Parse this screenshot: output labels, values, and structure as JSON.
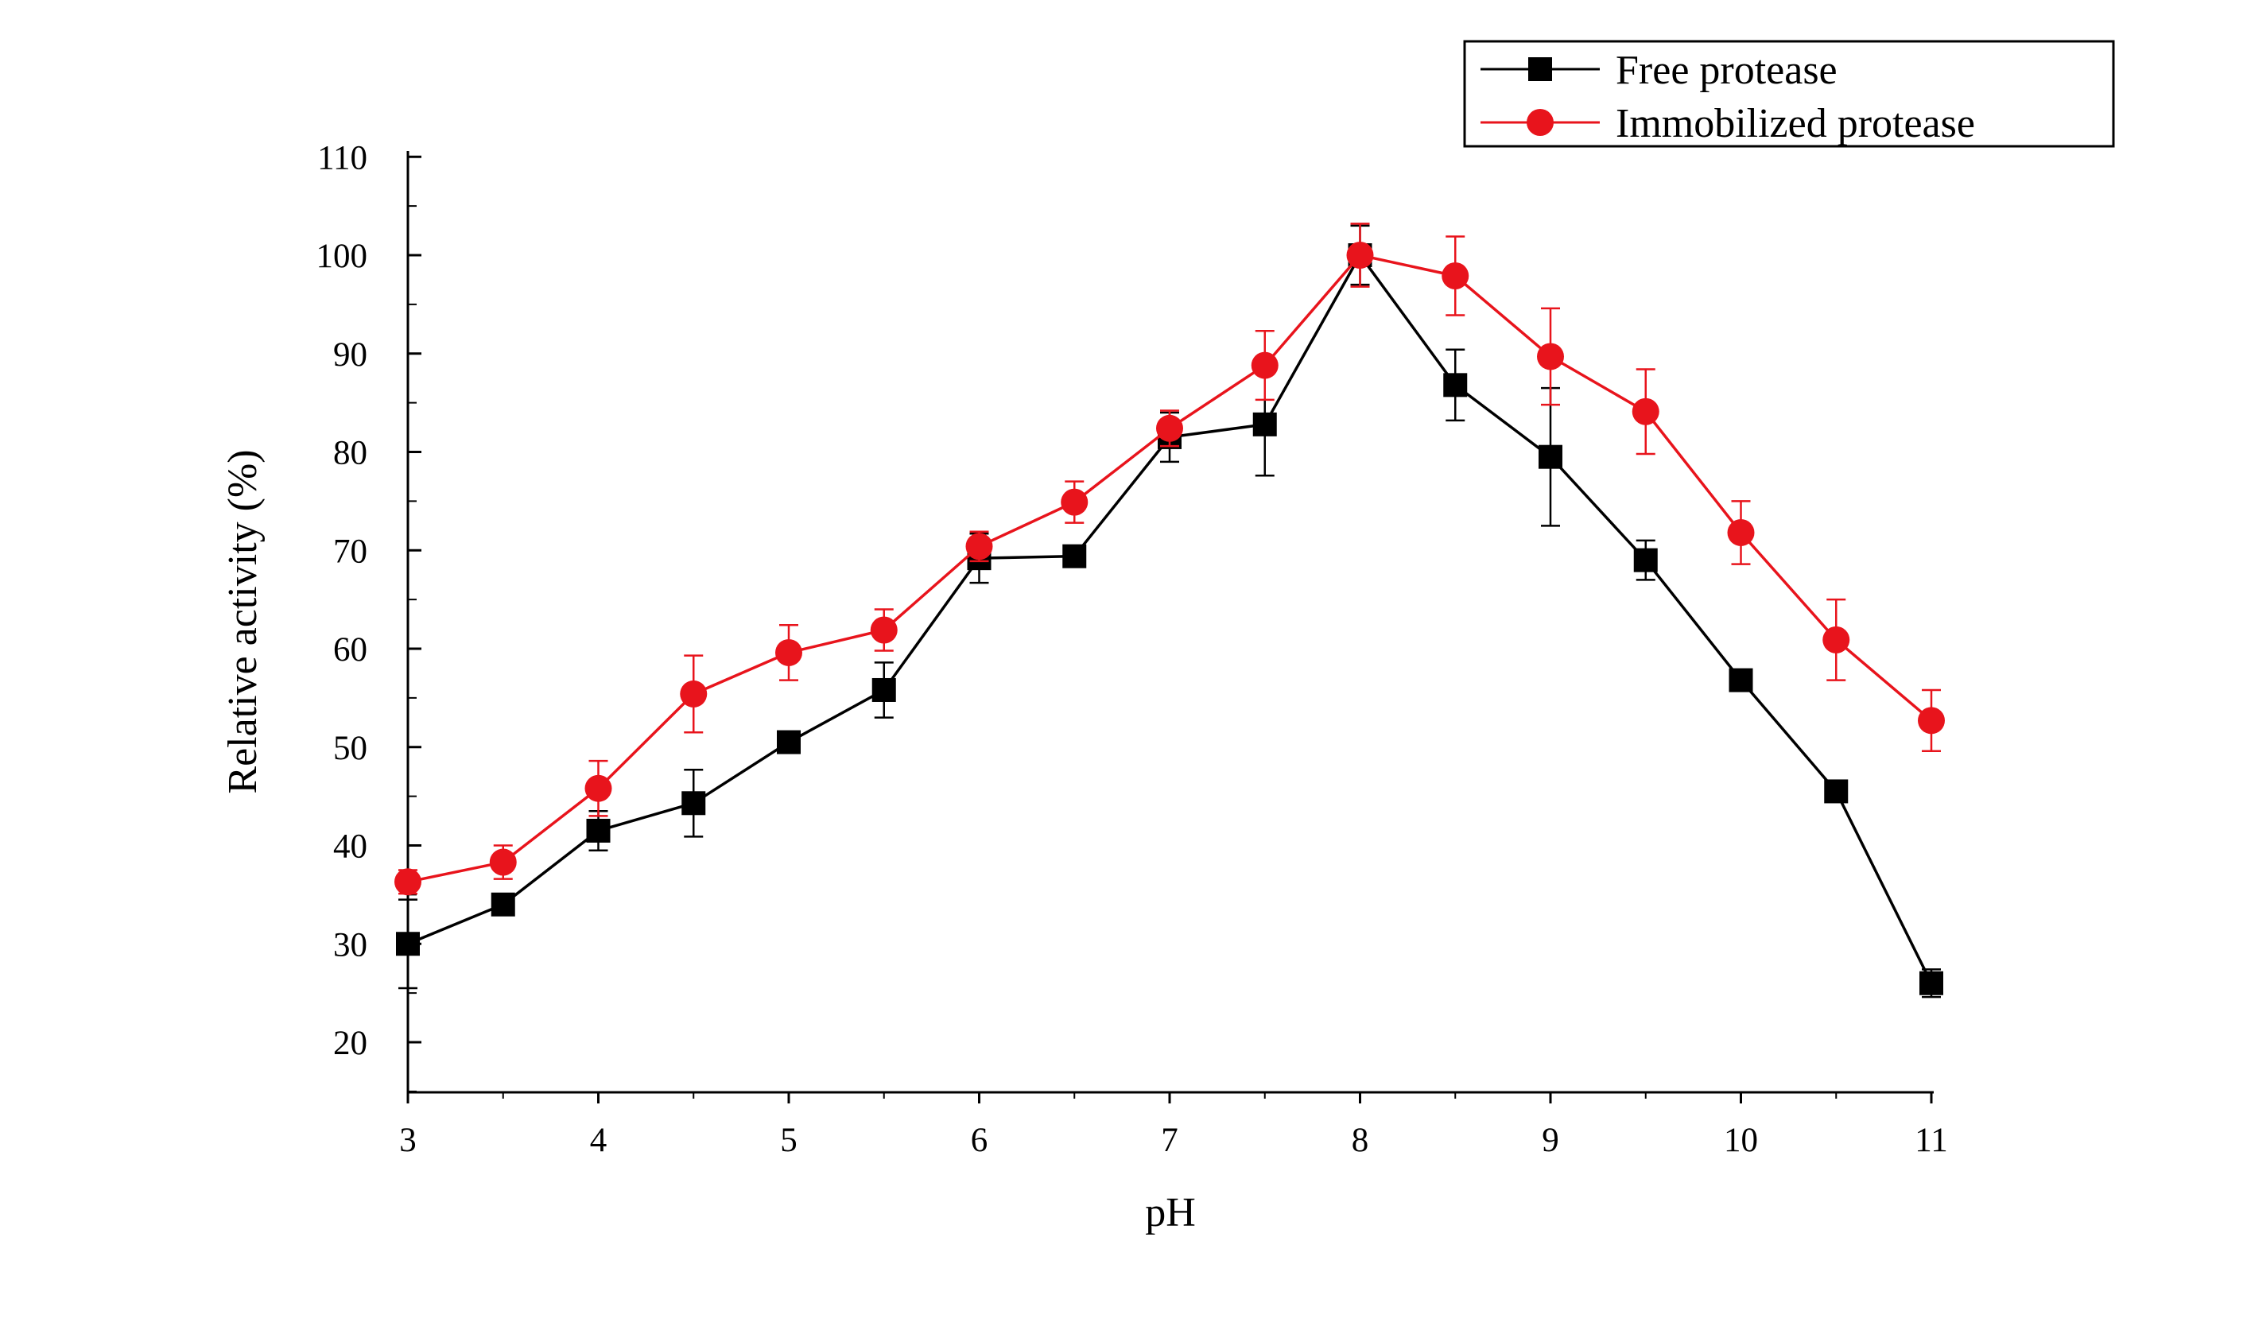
{
  "chart_data": {
    "type": "line",
    "title": "",
    "xlabel": "pH",
    "ylabel": "Relative activity (%)",
    "xlim": [
      3,
      11
    ],
    "ylim": [
      15,
      110
    ],
    "x_ticks": [
      3,
      4,
      5,
      6,
      7,
      8,
      9,
      10,
      11
    ],
    "y_ticks": [
      20,
      30,
      40,
      50,
      60,
      70,
      80,
      90,
      100,
      110
    ],
    "x": [
      3,
      3.5,
      4,
      4.5,
      5,
      5.5,
      6,
      6.5,
      7,
      7.5,
      8,
      8.5,
      9,
      9.5,
      10,
      10.5,
      11
    ],
    "legend_position": "top-right",
    "grid": false,
    "series": [
      {
        "name": "Free protease",
        "color": "#000000",
        "marker": "square",
        "values": [
          30,
          34,
          41.5,
          44.3,
          50.5,
          55.8,
          69.2,
          69.4,
          81.5,
          82.8,
          100,
          86.8,
          79.5,
          69,
          56.8,
          45.5,
          26
        ],
        "errors": [
          4.5,
          1,
          2,
          3.4,
          0.6,
          2.8,
          2.5,
          0.8,
          2.5,
          5.2,
          3,
          3.6,
          7,
          2,
          0.8,
          0.8,
          1.4
        ]
      },
      {
        "name": "Immobilized protease",
        "color": "#e8141c",
        "marker": "circle",
        "values": [
          36.3,
          38.3,
          45.8,
          55.4,
          59.6,
          61.9,
          70.4,
          74.9,
          82.4,
          88.8,
          100,
          97.9,
          89.7,
          84.1,
          71.8,
          60.9,
          52.7
        ],
        "errors": [
          1.2,
          1.7,
          2.8,
          3.9,
          2.8,
          2.1,
          1.5,
          2.1,
          1.8,
          3.5,
          3.2,
          4,
          4.9,
          4.3,
          3.2,
          4.1,
          3.1
        ]
      }
    ]
  }
}
